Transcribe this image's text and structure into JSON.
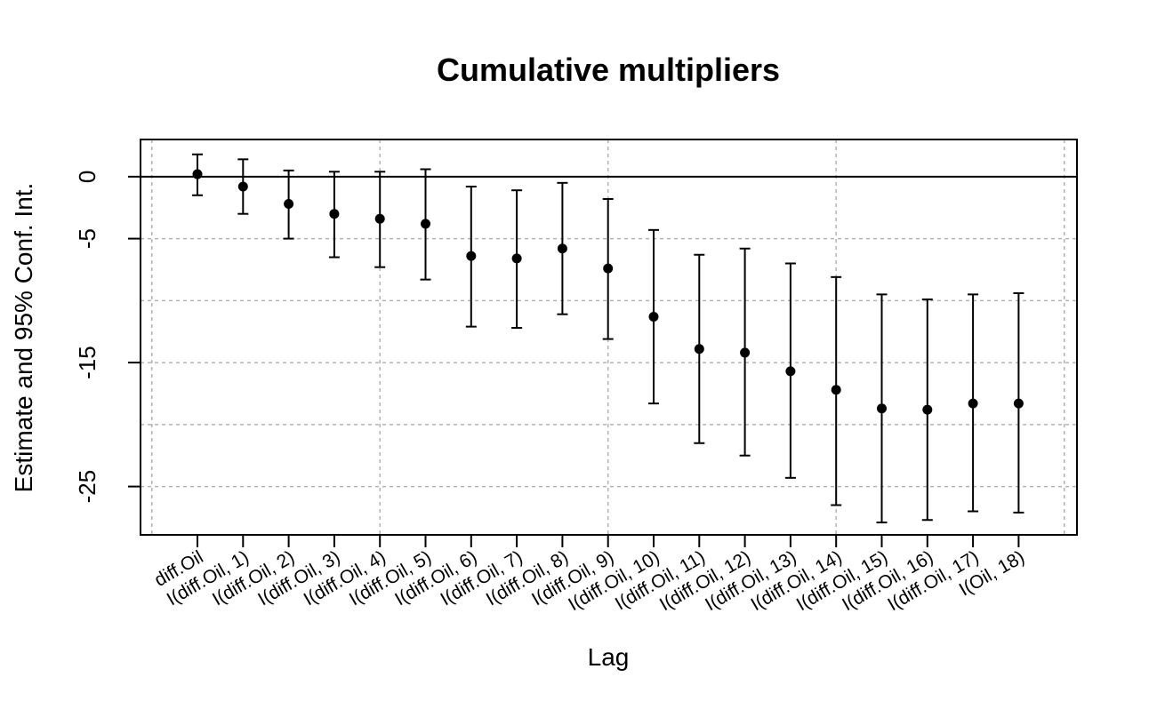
{
  "chart_data": {
    "type": "scatter",
    "title": "Cumulative multipliers",
    "xlabel": "Lag",
    "ylabel": "Estimate and 95% Conf. Int.",
    "ylim": [
      -28.9,
      3.0
    ],
    "yticks": [
      0,
      -5,
      -15,
      -25
    ],
    "ygrid": [
      -5,
      -10,
      -15,
      -20,
      -25
    ],
    "reference_line": 0,
    "grid": true,
    "categories": [
      "diff.Oil",
      "I(diff.Oil, 1)",
      "I(diff.Oil, 2)",
      "I(diff.Oil, 3)",
      "I(diff.Oil, 4)",
      "I(diff.Oil, 5)",
      "I(diff.Oil, 6)",
      "I(diff.Oil, 7)",
      "I(diff.Oil, 8)",
      "I(diff.Oil, 9)",
      "I(diff.Oil, 10)",
      "I(diff.Oil, 11)",
      "I(diff.Oil, 12)",
      "I(diff.Oil, 13)",
      "I(diff.Oil, 14)",
      "I(diff.Oil, 15)",
      "I(diff.Oil, 16)",
      "I(diff.Oil, 17)",
      "I(Oil, 18)"
    ],
    "series": [
      {
        "estimate": [
          0.2,
          -0.8,
          -2.2,
          -3.0,
          -3.4,
          -3.8,
          -6.4,
          -6.6,
          -5.8,
          -7.4,
          -11.3,
          -13.9,
          -14.2,
          -15.7,
          -17.2,
          -18.7,
          -18.8,
          -18.3,
          -18.3
        ],
        "lower": [
          -1.5,
          -3.0,
          -5.0,
          -6.5,
          -7.3,
          -8.3,
          -12.1,
          -12.2,
          -11.1,
          -13.1,
          -18.3,
          -21.5,
          -22.5,
          -24.3,
          -26.5,
          -27.9,
          -27.7,
          -27.0,
          -27.1
        ],
        "upper": [
          1.8,
          1.4,
          0.5,
          0.4,
          0.4,
          0.6,
          -0.8,
          -1.1,
          -0.5,
          -1.8,
          -4.3,
          -6.3,
          -5.8,
          -7.0,
          -8.1,
          -9.5,
          -9.9,
          -9.5,
          -9.4
        ]
      }
    ]
  }
}
